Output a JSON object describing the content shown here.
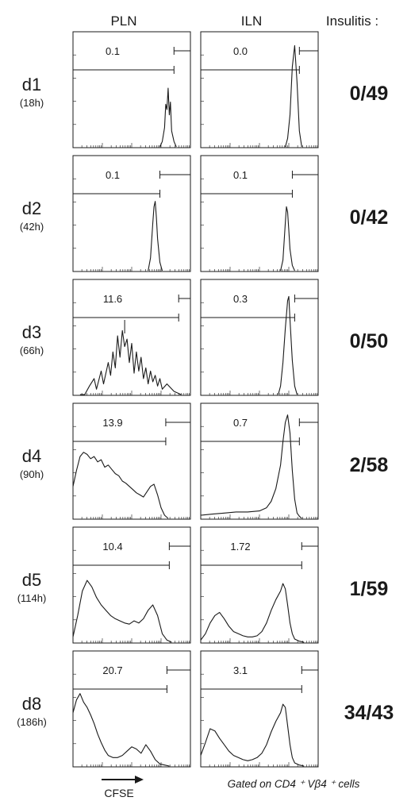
{
  "headers": {
    "pln": "PLN",
    "iln": "ILN",
    "insulitis": "Insulitis :"
  },
  "footer": {
    "x_label": "CFSE",
    "gate_note": "Gated on CD4 ⁺ Vβ4 ⁺ cells"
  },
  "colors": {
    "line": "#1a1a1a",
    "background": "#ffffff"
  },
  "chart_data": {
    "type": "histogram-grid",
    "x_axis": {
      "quantity": "CFSE intensity",
      "scale": "log",
      "tick_labels_shown": false
    },
    "columns": [
      "PLN",
      "ILN"
    ],
    "rows": [
      {
        "day": "d1",
        "hours": "(18h)",
        "insulitis": "0/49",
        "panels": [
          {
            "column": "PLN",
            "gate_value": "0.1",
            "x": [
              0.74,
              0.76,
              0.78,
              0.79,
              0.8,
              0.81,
              0.82,
              0.83,
              0.84,
              0.86,
              0.88
            ],
            "y": [
              0,
              0.05,
              0.18,
              0.4,
              0.35,
              0.55,
              0.3,
              0.42,
              0.15,
              0.05,
              0
            ]
          },
          {
            "column": "ILN",
            "gate_value": "0.0",
            "x": [
              0.72,
              0.74,
              0.76,
              0.78,
              0.8,
              0.82,
              0.84,
              0.86
            ],
            "y": [
              0,
              0.08,
              0.3,
              0.75,
              0.95,
              0.6,
              0.15,
              0
            ]
          }
        ]
      },
      {
        "day": "d2",
        "hours": "(42h)",
        "insulitis": "0/42",
        "panels": [
          {
            "column": "PLN",
            "gate_value": "0.1",
            "x": [
              0.64,
              0.66,
              0.68,
              0.69,
              0.7,
              0.71,
              0.72,
              0.74,
              0.76
            ],
            "y": [
              0,
              0.12,
              0.45,
              0.6,
              0.65,
              0.5,
              0.3,
              0.08,
              0
            ]
          },
          {
            "column": "ILN",
            "gate_value": "0.1",
            "x": [
              0.68,
              0.7,
              0.72,
              0.73,
              0.74,
              0.75,
              0.76,
              0.78,
              0.8
            ],
            "y": [
              0,
              0.1,
              0.45,
              0.6,
              0.55,
              0.38,
              0.2,
              0.05,
              0
            ]
          }
        ]
      },
      {
        "day": "d3",
        "hours": "(66h)",
        "insulitis": "0/50",
        "panels": [
          {
            "column": "PLN",
            "gate_value": "11.6",
            "x": [
              0.06,
              0.1,
              0.14,
              0.18,
              0.2,
              0.24,
              0.26,
              0.3,
              0.32,
              0.34,
              0.36,
              0.38,
              0.4,
              0.42,
              0.44,
              0.46,
              0.48,
              0.5,
              0.52,
              0.54,
              0.56,
              0.58,
              0.6,
              0.62,
              0.64,
              0.66,
              0.68,
              0.7,
              0.72,
              0.74,
              0.76,
              0.8,
              0.86,
              0.92
            ],
            "y": [
              0,
              0,
              0.08,
              0.15,
              0.05,
              0.22,
              0.1,
              0.3,
              0.18,
              0.4,
              0.25,
              0.55,
              0.35,
              0.6,
              0.45,
              0.52,
              0.3,
              0.48,
              0.2,
              0.4,
              0.22,
              0.35,
              0.15,
              0.25,
              0.1,
              0.22,
              0.12,
              0.18,
              0.08,
              0.15,
              0.05,
              0.1,
              0.03,
              0
            ],
            "marker_x": 0.44
          },
          {
            "column": "ILN",
            "gate_value": "0.3",
            "x": [
              0.66,
              0.68,
              0.7,
              0.72,
              0.74,
              0.75,
              0.76,
              0.78,
              0.8,
              0.82
            ],
            "y": [
              0,
              0.08,
              0.3,
              0.62,
              0.88,
              0.92,
              0.7,
              0.32,
              0.08,
              0
            ]
          }
        ]
      },
      {
        "day": "d4",
        "hours": "(90h)",
        "insulitis": "2/58",
        "panels": [
          {
            "column": "PLN",
            "gate_value": "13.9",
            "x": [
              0.0,
              0.03,
              0.06,
              0.09,
              0.12,
              0.15,
              0.18,
              0.21,
              0.24,
              0.27,
              0.3,
              0.33,
              0.36,
              0.39,
              0.42,
              0.45,
              0.48,
              0.51,
              0.54,
              0.57,
              0.6,
              0.63,
              0.66,
              0.69,
              0.72,
              0.75,
              0.78,
              0.81
            ],
            "y": [
              0.3,
              0.45,
              0.58,
              0.62,
              0.6,
              0.56,
              0.58,
              0.53,
              0.55,
              0.48,
              0.5,
              0.46,
              0.42,
              0.4,
              0.35,
              0.33,
              0.3,
              0.27,
              0.24,
              0.22,
              0.2,
              0.25,
              0.3,
              0.32,
              0.22,
              0.1,
              0.03,
              0
            ]
          },
          {
            "column": "ILN",
            "gate_value": "0.7",
            "x": [
              0.0,
              0.1,
              0.2,
              0.3,
              0.4,
              0.5,
              0.56,
              0.6,
              0.64,
              0.68,
              0.7,
              0.72,
              0.74,
              0.76,
              0.78,
              0.8,
              0.82,
              0.84,
              0.86
            ],
            "y": [
              0.03,
              0.04,
              0.05,
              0.06,
              0.06,
              0.07,
              0.1,
              0.16,
              0.28,
              0.5,
              0.72,
              0.9,
              0.97,
              0.8,
              0.45,
              0.18,
              0.05,
              0.02,
              0
            ]
          }
        ]
      },
      {
        "day": "d5",
        "hours": "(114h)",
        "insulitis": "1/59",
        "panels": [
          {
            "column": "PLN",
            "gate_value": "10.4",
            "x": [
              0.0,
              0.04,
              0.08,
              0.12,
              0.16,
              0.2,
              0.24,
              0.28,
              0.32,
              0.36,
              0.4,
              0.44,
              0.48,
              0.52,
              0.56,
              0.6,
              0.64,
              0.68,
              0.72,
              0.76,
              0.8,
              0.84
            ],
            "y": [
              0.05,
              0.25,
              0.48,
              0.58,
              0.52,
              0.42,
              0.35,
              0.3,
              0.25,
              0.22,
              0.2,
              0.18,
              0.17,
              0.2,
              0.18,
              0.22,
              0.3,
              0.35,
              0.25,
              0.08,
              0.02,
              0
            ]
          },
          {
            "column": "ILN",
            "gate_value": "1.72",
            "x": [
              0.0,
              0.04,
              0.08,
              0.12,
              0.16,
              0.2,
              0.24,
              0.28,
              0.32,
              0.36,
              0.4,
              0.44,
              0.48,
              0.52,
              0.56,
              0.6,
              0.64,
              0.68,
              0.7,
              0.72,
              0.74,
              0.76,
              0.78,
              0.8,
              0.84,
              0.88
            ],
            "y": [
              0.02,
              0.08,
              0.18,
              0.25,
              0.28,
              0.22,
              0.15,
              0.1,
              0.08,
              0.06,
              0.05,
              0.05,
              0.06,
              0.1,
              0.18,
              0.3,
              0.4,
              0.48,
              0.55,
              0.5,
              0.35,
              0.18,
              0.08,
              0.03,
              0.01,
              0
            ]
          }
        ]
      },
      {
        "day": "d8",
        "hours": "(186h)",
        "insulitis": "34/43",
        "panels": [
          {
            "column": "PLN",
            "gate_value": "20.7",
            "x": [
              0.0,
              0.03,
              0.06,
              0.09,
              0.12,
              0.15,
              0.18,
              0.21,
              0.24,
              0.27,
              0.3,
              0.34,
              0.38,
              0.42,
              0.46,
              0.5,
              0.54,
              0.58,
              0.62,
              0.66,
              0.7,
              0.74,
              0.78,
              0.82
            ],
            "y": [
              0.5,
              0.62,
              0.68,
              0.6,
              0.55,
              0.48,
              0.4,
              0.3,
              0.22,
              0.15,
              0.1,
              0.08,
              0.08,
              0.1,
              0.14,
              0.18,
              0.16,
              0.12,
              0.2,
              0.14,
              0.06,
              0.02,
              0.01,
              0
            ]
          },
          {
            "column": "ILN",
            "gate_value": "3.1",
            "x": [
              0.0,
              0.04,
              0.08,
              0.12,
              0.16,
              0.2,
              0.24,
              0.28,
              0.32,
              0.36,
              0.4,
              0.44,
              0.48,
              0.52,
              0.56,
              0.6,
              0.64,
              0.68,
              0.7,
              0.72,
              0.74,
              0.76,
              0.78,
              0.8,
              0.84,
              0.88
            ],
            "y": [
              0.1,
              0.22,
              0.35,
              0.33,
              0.26,
              0.2,
              0.14,
              0.1,
              0.08,
              0.06,
              0.05,
              0.06,
              0.08,
              0.12,
              0.2,
              0.32,
              0.42,
              0.5,
              0.58,
              0.55,
              0.38,
              0.2,
              0.08,
              0.03,
              0.01,
              0
            ]
          }
        ]
      }
    ]
  }
}
